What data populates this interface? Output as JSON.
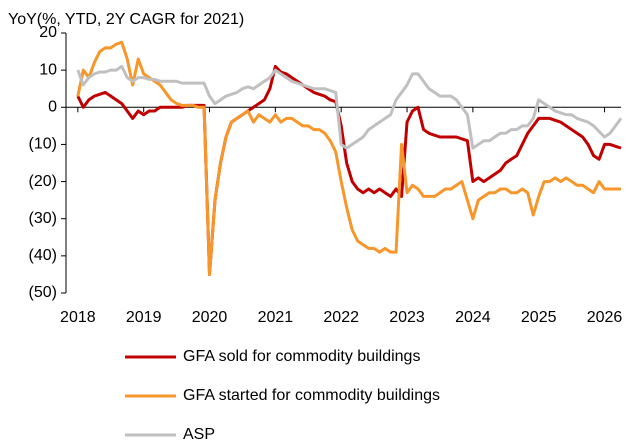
{
  "chart_data": {
    "type": "line",
    "title": "YoY(%, YTD, 2Y CAGR for 2021)",
    "x": [
      2018.0,
      2018.083,
      2018.167,
      2018.25,
      2018.333,
      2018.417,
      2018.5,
      2018.583,
      2018.667,
      2018.75,
      2018.833,
      2018.917,
      2019.0,
      2019.083,
      2019.167,
      2019.25,
      2019.333,
      2019.417,
      2019.5,
      2019.583,
      2019.667,
      2019.75,
      2019.833,
      2019.917,
      2020.0,
      2020.083,
      2020.167,
      2020.25,
      2020.333,
      2020.417,
      2020.5,
      2020.583,
      2020.667,
      2020.75,
      2020.833,
      2020.917,
      2021.0,
      2021.083,
      2021.167,
      2021.25,
      2021.333,
      2021.417,
      2021.5,
      2021.583,
      2021.667,
      2021.75,
      2021.833,
      2021.917,
      2022.0,
      2022.083,
      2022.167,
      2022.25,
      2022.333,
      2022.417,
      2022.5,
      2022.583,
      2022.667,
      2022.75,
      2022.833,
      2022.917,
      2023.0,
      2023.083,
      2023.167,
      2023.25,
      2023.333,
      2023.417,
      2023.5,
      2023.583,
      2023.667,
      2023.75,
      2023.833,
      2023.917,
      2024.0,
      2024.083,
      2024.167,
      2024.25,
      2024.333,
      2024.417,
      2024.5,
      2024.583,
      2024.667,
      2024.75,
      2024.833,
      2024.917,
      2025.0,
      2025.083,
      2025.167,
      2025.25,
      2025.333,
      2025.417,
      2025.5,
      2025.583,
      2025.667,
      2025.75,
      2025.833,
      2025.917,
      2026.0,
      2026.083,
      2026.167,
      2026.25
    ],
    "series": [
      {
        "name": "GFA sold for commodity buildings",
        "color": "#c00000",
        "values": [
          3,
          0,
          2,
          3,
          3.5,
          4,
          3,
          2,
          1,
          -1,
          -3,
          -1,
          -2,
          -1,
          -1,
          0,
          0,
          0,
          0,
          0,
          0.5,
          0.5,
          0.5,
          0.5,
          -45,
          -25,
          -15,
          -8,
          -4,
          -3,
          -2,
          -1,
          0,
          1,
          2,
          5,
          11,
          9.5,
          9,
          8,
          7,
          6,
          5,
          4,
          3.5,
          3,
          2,
          1.5,
          -5,
          -15,
          -20,
          -22,
          -23,
          -22,
          -23,
          -22,
          -23,
          -24,
          -22,
          -24,
          -4,
          -1,
          0,
          -6,
          -7,
          -7.5,
          -8,
          -8,
          -8,
          -8,
          -8.5,
          -9,
          -20,
          -19,
          -20,
          -19,
          -18,
          -17,
          -15,
          -14,
          -13,
          -10,
          -7,
          -5,
          -3,
          -3,
          -3,
          -3.5,
          -4,
          -5,
          -6,
          -7,
          -8,
          -10,
          -13,
          -14,
          -10,
          -10,
          -10.5,
          -11
        ]
      },
      {
        "name": "GFA started for commodity buildings",
        "color": "#f7962a",
        "values": [
          3,
          10,
          8,
          12,
          15,
          16,
          16,
          17,
          17.5,
          13,
          6,
          13,
          9,
          8,
          7,
          6,
          4,
          2,
          1,
          0.5,
          0.5,
          0.5,
          0,
          0,
          -45,
          -25,
          -15,
          -8,
          -4,
          -3,
          -2,
          -1,
          -4,
          -2,
          -3,
          -4,
          -2,
          -4,
          -3,
          -3,
          -4,
          -5,
          -5,
          -6,
          -6,
          -7,
          -9,
          -12,
          -20,
          -27,
          -33,
          -36,
          -37,
          -38,
          -38,
          -39,
          -38,
          -39,
          -39,
          -10,
          -23,
          -21,
          -22,
          -24,
          -24,
          -24,
          -23,
          -22,
          -22,
          -21,
          -20,
          -25,
          -30,
          -25,
          -24,
          -23,
          -23,
          -22,
          -22,
          -23,
          -23,
          -22,
          -23,
          -29,
          -24,
          -20,
          -20,
          -19,
          -20,
          -19,
          -20,
          -21,
          -21,
          -22,
          -23,
          -20,
          -22,
          -22,
          -22,
          -22
        ]
      },
      {
        "name": "ASP",
        "color": "#c0c0c0",
        "values": [
          10,
          6,
          8,
          9,
          9.5,
          9.5,
          10,
          10,
          11,
          8,
          7,
          8,
          8,
          7.5,
          7.5,
          7,
          7,
          7,
          7,
          6.5,
          6.5,
          6.5,
          6.5,
          6.5,
          3,
          1,
          2,
          3,
          3.5,
          4,
          5,
          5.5,
          5,
          6,
          7,
          8,
          10,
          9,
          8,
          7,
          6.5,
          6,
          5.5,
          5,
          5,
          5,
          4.5,
          4,
          -10,
          -11,
          -10,
          -9,
          -8,
          -6,
          -5,
          -4,
          -3,
          -2,
          2,
          4,
          6,
          9,
          9,
          7,
          5,
          4,
          3,
          3,
          3,
          2,
          0,
          -2,
          -11,
          -10,
          -9,
          -9,
          -8,
          -7,
          -7,
          -6,
          -6,
          -5,
          -5,
          -3,
          2,
          1,
          0,
          -1,
          -1.5,
          -2,
          -2,
          -3,
          -3.5,
          -4,
          -5,
          -6.5,
          -8,
          -7,
          -5,
          -3
        ]
      }
    ],
    "xlim": [
      2017.82,
      2026.25
    ],
    "xticks": [
      2018,
      2019,
      2020,
      2021,
      2022,
      2023,
      2024,
      2025,
      2026
    ],
    "ylim": [
      -50,
      20
    ],
    "yticks": [
      20,
      10,
      0,
      {
        "value": -10,
        "label": "(10)"
      },
      {
        "value": -20,
        "label": "(20)"
      },
      {
        "value": -30,
        "label": "(30)"
      },
      {
        "value": -40,
        "label": "(40)"
      },
      {
        "value": -50,
        "label": "(50)"
      }
    ],
    "negative_tick_color": "#ff0000",
    "grid": false,
    "legend": "bottom"
  }
}
